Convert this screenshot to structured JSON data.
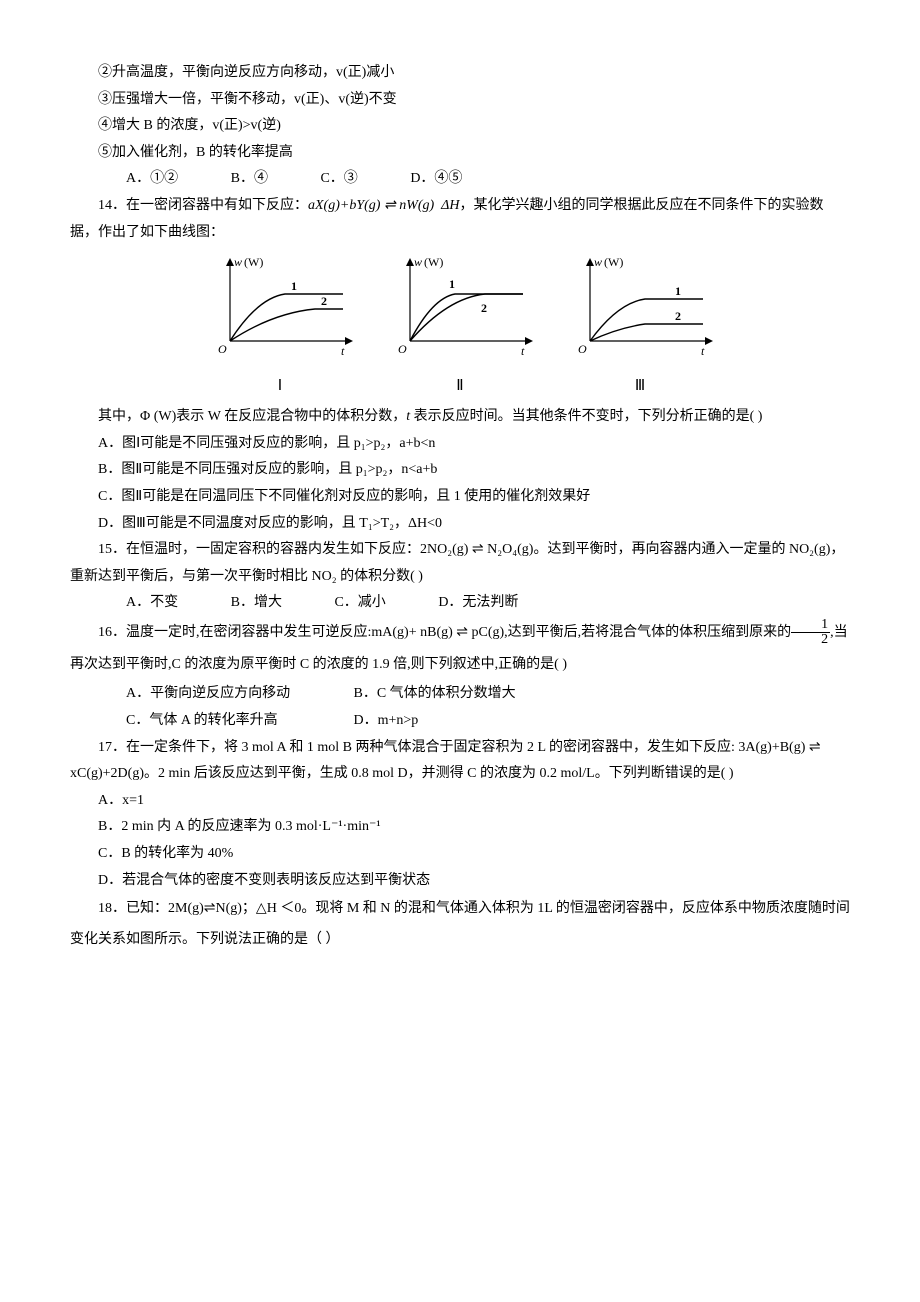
{
  "q13": {
    "opt2": "②升高温度，平衡向逆反应方向移动，v(正)减小",
    "opt3": "③压强增大一倍，平衡不移动，v(正)、v(逆)不变",
    "opt4": "④增大 B 的浓度，v(正)>v(逆)",
    "opt5": "⑤加入催化剂，B 的转化率提高",
    "A": "A．①②",
    "B": "B．④",
    "C": "C．③",
    "D": "D．④⑤"
  },
  "q14": {
    "stem1_pre": "14．在一密闭容器中有如下反应：",
    "stem1_eq": "aX(g)+bY(g) ⇌ nW(g)  ΔH",
    "stem1_post": "，某化学兴趣小组的同学根据此反应在不同条件下的实验数据，作出了如下曲线图：",
    "graphs": {
      "y_axis_label": "w (W)",
      "x_origin": "O",
      "x_axis_label": "t",
      "series_label_1": "1",
      "series_label_2": "2",
      "panel_labels": [
        "Ⅰ",
        "Ⅱ",
        "Ⅲ"
      ],
      "curves": {
        "I": {
          "c1": {
            "rise": 55,
            "plateau": 40
          },
          "c2": {
            "rise": 85,
            "plateau": 55
          }
        },
        "II": {
          "c1": {
            "rise": 45,
            "plateau": 40
          },
          "c2": {
            "rise": 75,
            "plateau": 40
          }
        },
        "III": {
          "c1": {
            "rise": 55,
            "plateau": 45
          },
          "c2": {
            "rise": 55,
            "plateau": 70
          }
        }
      },
      "axis_color": "#000000",
      "curve_color": "#000000",
      "stroke_width_axis": 1.2,
      "stroke_width_curve": 1.4,
      "canvas": {
        "w": 150,
        "h": 105
      }
    },
    "stem2_pre": "其中，Φ (W)表示 W 在反应混合物中的体积分数，",
    "stem2_t": "t",
    "stem2_post": " 表示反应时间。当其他条件不变时，下列分析正确的是(      )",
    "A": "A．图Ⅰ可能是不同压强对反应的影响，且 p₁>p₂，a+b<n",
    "B": "B．图Ⅱ可能是不同压强对反应的影响，且 p₁>p₂，n<a+b",
    "C": "C．图Ⅱ可能是在同温同压下不同催化剂对反应的影响，且 1 使用的催化剂效果好",
    "D": "D．图Ⅲ可能是不同温度对反应的影响，且 T₁>T₂，ΔH<0"
  },
  "q15": {
    "stem": "15．在恒温时，一固定容积的容器内发生如下反应：2NO₂(g) ⇌ N₂O₄(g)。达到平衡时，再向容器内通入一定量的 NO₂(g)，重新达到平衡后，与第一次平衡时相比 NO₂ 的体积分数(      )",
    "A": "A．不变",
    "B": "B．增大",
    "C": "C．减小",
    "D": "D．无法判断"
  },
  "q16": {
    "stem_pre": "16．温度一定时,在密闭容器中发生可逆反应:mA(g)+  nB(g) ⇌  pC(g),达到平衡后,若将混合气体的体积压缩到原来的",
    "frac_num": "1",
    "frac_den": "2",
    "stem_post": ",当再次达到平衡时,C 的浓度为原平衡时 C 的浓度的 1.9 倍,则下列叙述中,正确的是(      )",
    "A": "A．平衡向逆反应方向移动",
    "B": "B．C 气体的体积分数增大",
    "C": "C．气体 A 的转化率升高",
    "D": "D．m+n>p"
  },
  "q17": {
    "stem": "17．在一定条件下，将 3 mol A 和 1 mol B 两种气体混合于固定容积为 2 L 的密闭容器中，发生如下反应: 3A(g)+B(g) ⇌ xC(g)+2D(g)。2 min 后该反应达到平衡，生成 0.8 mol D，并测得 C 的浓度为 0.2 mol/L。下列判断错误的是(      )",
    "A": "A．x=1",
    "B": "B．2 min 内 A 的反应速率为 0.3 mol·L⁻¹·min⁻¹",
    "C": "C．B 的转化率为 40%",
    "D": "D．若混合气体的密度不变则表明该反应达到平衡状态"
  },
  "q18": {
    "stem": "18．已知：2M(g)⇌N(g)；△H ＜0。现将 M 和 N 的混和气体通入体积为 1L 的恒温密闭容器中，反应体系中物质浓度随时间变化关系如图所示。下列说法正确的是（   ）"
  }
}
